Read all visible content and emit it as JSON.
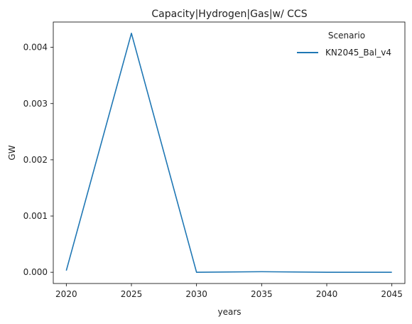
{
  "chart_data": {
    "type": "line",
    "title": "Capacity|Hydrogen|Gas|w/ CCS",
    "xlabel": "years",
    "ylabel": "GW",
    "x": [
      2020,
      2025,
      2030,
      2035,
      2040,
      2045
    ],
    "xticks": [
      "2020",
      "2025",
      "2030",
      "2035",
      "2040",
      "2045"
    ],
    "yticks": [
      "0.000",
      "0.001",
      "0.002",
      "0.003",
      "0.004"
    ],
    "xlim": [
      2019,
      2046
    ],
    "ylim": [
      -0.0002,
      0.00445
    ],
    "legend": {
      "title": "Scenario",
      "placement": "top-right"
    },
    "series": [
      {
        "name": "KN2045_Bal_v4",
        "color": "#1f77b4",
        "values": [
          3e-05,
          0.00425,
          0.0,
          1e-05,
          0.0,
          0.0
        ]
      }
    ],
    "grid": false
  }
}
